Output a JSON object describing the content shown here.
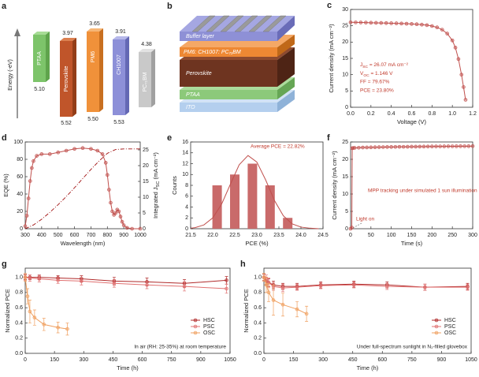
{
  "energy_diagram": {
    "panel": "a",
    "axis_label": "Energy (-eV)",
    "layers": [
      {
        "name": "PTAA",
        "bottom": "5.10"
      },
      {
        "name": "Perovskite",
        "top": "3.97",
        "bottom": "5.52"
      },
      {
        "name": "PM6",
        "top": "3.65",
        "bottom": "5.50"
      },
      {
        "name": "CH1007",
        "top": "3.91",
        "bottom": "5.53"
      },
      {
        "name": "PC₇₁BM",
        "top": "4.38"
      }
    ]
  },
  "stack_diagram": {
    "panel": "b",
    "layers": [
      "Buffer layer",
      "PM6: CH1007: PC₇₁BM",
      "Perovskite",
      "PTAA",
      "ITO"
    ]
  },
  "chart_data": [
    {
      "panel": "c",
      "type": "line",
      "xlabel": "Voltage (V)",
      "ylabel": "Current density (mA cm⁻²)",
      "xlim": [
        0,
        1.2
      ],
      "ylim": [
        0,
        30
      ],
      "xticks": [
        {
          "value": 0,
          "label": "0.0"
        },
        0.2,
        0.4,
        0.6,
        0.8,
        {
          "value": 1,
          "label": "1.0"
        },
        1.2
      ],
      "yticks": [
        0,
        5,
        10,
        15,
        20,
        25,
        30
      ],
      "series": [
        {
          "color": "#c0504d",
          "marker": true,
          "x": [
            0,
            0.05,
            0.1,
            0.15,
            0.2,
            0.25,
            0.3,
            0.35,
            0.4,
            0.45,
            0.5,
            0.55,
            0.6,
            0.65,
            0.7,
            0.75,
            0.8,
            0.85,
            0.9,
            0.95,
            1.0,
            1.03,
            1.06,
            1.09,
            1.11,
            1.13
          ],
          "values": [
            26.07,
            26.04,
            26.0,
            25.97,
            25.93,
            25.9,
            25.86,
            25.82,
            25.78,
            25.74,
            25.69,
            25.63,
            25.56,
            25.47,
            25.35,
            25.18,
            24.92,
            24.5,
            23.8,
            22.6,
            20.5,
            18.3,
            14.8,
            10.0,
            6.2,
            2.3
          ]
        }
      ],
      "annotations": [
        {
          "main": "J",
          "sub": "SC",
          "rest": " = 26.07 mA cm⁻²"
        },
        {
          "main": "V",
          "sub": "OC",
          "rest": " = 1.146 V"
        },
        "FF = 79.67%",
        "PCE = 23.80%"
      ]
    },
    {
      "panel": "d",
      "type": "line",
      "xlabel": "Wavelength (nm)",
      "ylabel": "EQE (%)",
      "y2label": {
        "main": "Integrated J",
        "sub": "SC",
        "rest": " (mA cm⁻²)"
      },
      "xlim": [
        300,
        1000
      ],
      "ylim": [
        0,
        100
      ],
      "y2lim": [
        0,
        27.5
      ],
      "xticks": [
        300,
        400,
        500,
        600,
        700,
        800,
        900,
        1000
      ],
      "yticks": [
        0,
        20,
        40,
        60,
        80,
        100
      ],
      "y2ticks": [
        0,
        5,
        10,
        15,
        20,
        25
      ],
      "series": [
        {
          "color": "#c0504d",
          "marker": true,
          "x": [
            300,
            310,
            320,
            330,
            340,
            350,
            370,
            400,
            450,
            500,
            550,
            600,
            650,
            700,
            740,
            770,
            790,
            800,
            810,
            820,
            830,
            840,
            850,
            860,
            870,
            880,
            890,
            900,
            920,
            950,
            1000
          ],
          "values": [
            3,
            15,
            35,
            55,
            70,
            78,
            84,
            86,
            86,
            88,
            90,
            92,
            93,
            92,
            90,
            86,
            76,
            62,
            45,
            30,
            20,
            16,
            18,
            22,
            20,
            14,
            8,
            4,
            1,
            0,
            0
          ]
        },
        {
          "color": "#a01010",
          "axis": "y2",
          "linestyle": "dashdot",
          "x": [
            300,
            350,
            400,
            450,
            500,
            550,
            600,
            650,
            700,
            750,
            800,
            850,
            900,
            1000
          ],
          "values": [
            0,
            1.2,
            3.0,
            5.2,
            7.6,
            10.2,
            13.0,
            15.9,
            18.8,
            21.5,
            23.9,
            25.1,
            25.3,
            25.3
          ]
        }
      ]
    },
    {
      "panel": "e",
      "type": "bar",
      "xlabel": "PCE (%)",
      "ylabel": "Counts",
      "xlim": [
        21.5,
        24.5
      ],
      "ylim": [
        0,
        16
      ],
      "xticks": [
        21.5,
        {
          "value": 22,
          "label": "22.0"
        },
        22.5,
        {
          "value": 23,
          "label": "23.0"
        },
        23.5,
        {
          "value": 24,
          "label": "24.0"
        },
        24.5
      ],
      "yticks": [
        0,
        2,
        4,
        6,
        8,
        10,
        12,
        14,
        16
      ],
      "series": [
        {
          "type": "bar",
          "color": "#c96a6a",
          "x": [
            22.1,
            22.5,
            22.9,
            23.3,
            23.7
          ],
          "values": [
            8,
            10,
            12,
            8,
            2
          ]
        },
        {
          "type": "line",
          "color": "#c0504d",
          "x": [
            21.5,
            21.6,
            21.8,
            22.0,
            22.2,
            22.4,
            22.6,
            22.8,
            23.0,
            23.2,
            23.4,
            23.6,
            23.8,
            24.0,
            24.2,
            24.4
          ],
          "values": [
            0.1,
            0.2,
            0.7,
            2.0,
            4.5,
            8.2,
            11.8,
            13.5,
            12.3,
            9.0,
            5.2,
            2.4,
            0.9,
            0.3,
            0.1,
            0.0
          ]
        }
      ],
      "annotations": [
        "Average PCE = 22.82%"
      ]
    },
    {
      "panel": "f",
      "type": "line",
      "xlabel": "Time (s)",
      "ylabel": "Current density (mA cm⁻²)",
      "xlim": [
        0,
        300
      ],
      "ylim": [
        0,
        25
      ],
      "xticks": [
        0,
        50,
        100,
        150,
        200,
        250,
        300
      ],
      "yticks": [
        0,
        5,
        10,
        15,
        20,
        25
      ],
      "series": [
        {
          "color": "#c0504d",
          "marker": true,
          "x": [
            0,
            3,
            4,
            6,
            10,
            20,
            30,
            40,
            50,
            60,
            70,
            80,
            90,
            100,
            110,
            120,
            130,
            140,
            150,
            160,
            170,
            180,
            190,
            200,
            210,
            220,
            230,
            240,
            250,
            260,
            270,
            280,
            290,
            300
          ],
          "values": [
            0,
            0.3,
            23.2,
            23.25,
            23.3,
            23.35,
            23.4,
            23.42,
            23.45,
            23.47,
            23.5,
            23.52,
            23.54,
            23.56,
            23.58,
            23.6,
            23.61,
            23.62,
            23.64,
            23.65,
            23.66,
            23.67,
            23.68,
            23.7,
            23.71,
            23.72,
            23.73,
            23.74,
            23.75,
            23.76,
            23.77,
            23.78,
            23.79,
            23.8
          ]
        }
      ],
      "annotations": [
        "MPP tracking under simulated 1 sun illumination",
        "Light on"
      ]
    },
    {
      "panel": "g",
      "type": "line",
      "xlabel": "Time (h)",
      "ylabel": "Normalized PCE",
      "xlim": [
        0,
        1050
      ],
      "ylim": [
        0,
        1.12
      ],
      "xticks": [
        0,
        150,
        300,
        450,
        600,
        750,
        900,
        1050
      ],
      "yticks": [
        {
          "value": 0,
          "label": "0.0"
        },
        0.2,
        0.4,
        0.6,
        0.8,
        {
          "value": 1,
          "label": "1.0"
        }
      ],
      "legend": "lower right",
      "series": [
        {
          "name": "HSC",
          "color": "#b02a2a",
          "marker": true,
          "x": [
            0,
            24,
            72,
            168,
            288,
            456,
            624,
            816,
            1032
          ],
          "values": [
            1.0,
            1.0,
            1.0,
            0.99,
            0.98,
            0.95,
            0.94,
            0.92,
            0.96
          ],
          "errors": [
            0.03,
            0.03,
            0.03,
            0.03,
            0.04,
            0.05,
            0.05,
            0.05,
            0.05
          ]
        },
        {
          "name": "PSC",
          "color": "#e07070",
          "marker": true,
          "x": [
            0,
            24,
            72,
            168,
            288,
            456,
            624,
            816,
            1032
          ],
          "values": [
            1.0,
            0.99,
            0.98,
            0.96,
            0.95,
            0.92,
            0.9,
            0.88,
            0.85
          ],
          "errors": [
            0.04,
            0.04,
            0.04,
            0.04,
            0.05,
            0.05,
            0.05,
            0.06,
            0.06
          ]
        },
        {
          "name": "OSC",
          "color": "#f0a060",
          "marker": true,
          "x": [
            0,
            12,
            24,
            48,
            96,
            168,
            216
          ],
          "values": [
            1.0,
            0.75,
            0.55,
            0.47,
            0.38,
            0.34,
            0.32
          ],
          "errors": [
            0.05,
            0.1,
            0.15,
            0.1,
            0.08,
            0.07,
            0.08
          ]
        }
      ],
      "annotations": [
        "In air (RH: 25-35%) at room temperature"
      ]
    },
    {
      "panel": "h",
      "type": "line",
      "xlabel": "Time (h)",
      "ylabel": "Normalized PCE",
      "xlim": [
        0,
        1050
      ],
      "ylim": [
        0,
        1.12
      ],
      "xticks": [
        0,
        150,
        300,
        450,
        600,
        750,
        900,
        1050
      ],
      "yticks": [
        {
          "value": 0,
          "label": "0.0"
        },
        0.2,
        0.4,
        0.6,
        0.8,
        {
          "value": 1,
          "label": "1.0"
        }
      ],
      "legend": "lower right",
      "series": [
        {
          "name": "HSC",
          "color": "#b02a2a",
          "marker": true,
          "x": [
            0,
            12,
            24,
            48,
            96,
            168,
            288,
            456,
            624,
            816,
            1032
          ],
          "values": [
            1.0,
            0.95,
            0.93,
            0.9,
            0.88,
            0.88,
            0.9,
            0.91,
            0.9,
            0.87,
            0.88
          ],
          "errors": [
            0.04,
            0.05,
            0.05,
            0.05,
            0.04,
            0.04,
            0.04,
            0.04,
            0.04,
            0.04,
            0.04
          ]
        },
        {
          "name": "PSC",
          "color": "#e07070",
          "marker": true,
          "x": [
            0,
            12,
            24,
            48,
            96,
            168,
            288,
            456,
            624,
            816,
            1032
          ],
          "values": [
            1.0,
            0.97,
            0.93,
            0.88,
            0.86,
            0.87,
            0.89,
            0.9,
            0.88,
            0.87,
            0.87
          ],
          "errors": [
            0.05,
            0.06,
            0.06,
            0.05,
            0.05,
            0.04,
            0.04,
            0.04,
            0.04,
            0.04,
            0.04
          ]
        },
        {
          "name": "OSC",
          "color": "#f0a060",
          "marker": true,
          "x": [
            0,
            12,
            24,
            48,
            96,
            168,
            216
          ],
          "values": [
            1.0,
            0.9,
            0.8,
            0.7,
            0.64,
            0.58,
            0.52
          ],
          "errors": [
            0.05,
            0.1,
            0.12,
            0.2,
            0.15,
            0.1,
            0.1
          ]
        }
      ],
      "annotations": [
        "Under full-spectrum sunlight in N₂-filled glovebox"
      ]
    }
  ]
}
